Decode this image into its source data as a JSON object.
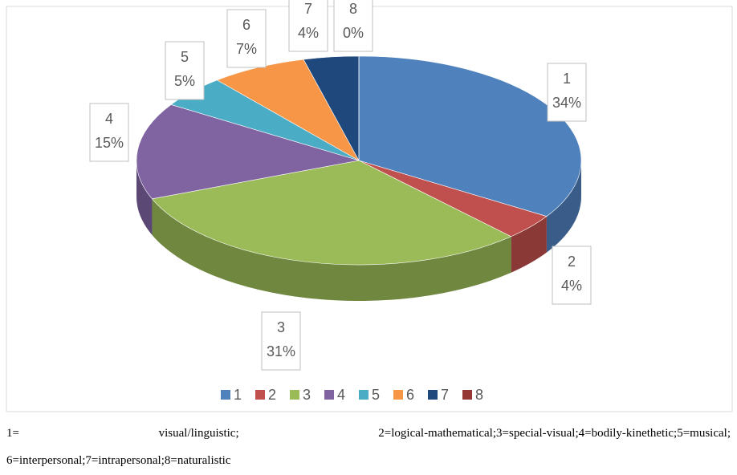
{
  "chart_data": {
    "type": "pie",
    "categories": [
      "1",
      "2",
      "3",
      "4",
      "5",
      "6",
      "7",
      "8"
    ],
    "values": [
      34,
      4,
      31,
      15,
      5,
      7,
      4,
      0
    ],
    "value_labels": [
      "34%",
      "4%",
      "31%",
      "15%",
      "5%",
      "7%",
      "4%",
      "0%"
    ],
    "colors": [
      "#4f81bd",
      "#c0504d",
      "#9bbb59",
      "#8064a2",
      "#4bacc6",
      "#f79646",
      "#1f497d",
      "#953735"
    ],
    "legend": "bottom",
    "three_d": true
  },
  "caption_lines": [
    "1= visual/linguistic; 2=logical-mathematical;3=special-visual;4=bodily-kinethetic;5=musical;",
    "6=interpersonal;7=intrapersonal;8=naturalistic"
  ]
}
